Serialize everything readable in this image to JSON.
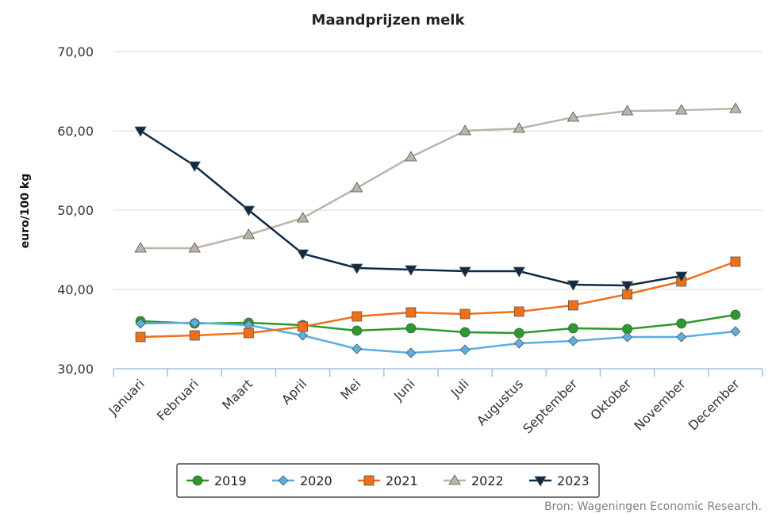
{
  "chart_data": {
    "type": "line",
    "title": "Maandprijzen melk",
    "ylabel": "euro/100 kg",
    "xlabel": "",
    "ylim": [
      30,
      70
    ],
    "yticks": [
      "30,00",
      "40,00",
      "50,00",
      "60,00",
      "70,00"
    ],
    "ytick_values": [
      30,
      40,
      50,
      60,
      70
    ],
    "grid": true,
    "legend_position": "bottom",
    "categories": [
      "Januari",
      "Februari",
      "Maart",
      "April",
      "Mei",
      "Juni",
      "Juli",
      "Augustus",
      "September",
      "Oktober",
      "November",
      "December"
    ],
    "series": [
      {
        "name": "2019",
        "color": "#2a9a2a",
        "marker": "circle",
        "values": [
          36.0,
          35.7,
          35.8,
          35.5,
          34.8,
          35.1,
          34.6,
          34.5,
          35.1,
          35.0,
          35.7,
          36.8
        ]
      },
      {
        "name": "2020",
        "color": "#5aaee0",
        "marker": "diamond",
        "values": [
          35.7,
          35.8,
          35.5,
          34.2,
          32.5,
          32.0,
          32.4,
          33.2,
          33.5,
          34.0,
          34.0,
          34.7
        ]
      },
      {
        "name": "2021",
        "color": "#f07018",
        "marker": "square",
        "values": [
          34.0,
          34.2,
          34.5,
          35.3,
          36.6,
          37.1,
          36.9,
          37.2,
          38.0,
          39.4,
          41.0,
          43.5
        ]
      },
      {
        "name": "2022",
        "color": "#bcb4a8",
        "marker": "triangle",
        "values": [
          45.2,
          45.2,
          46.9,
          49.0,
          52.8,
          56.7,
          60.0,
          60.3,
          61.7,
          62.5,
          62.6,
          62.8
        ]
      },
      {
        "name": "2023",
        "color": "#0f2a45",
        "marker": "triangle-down",
        "values": [
          60.0,
          55.6,
          50.0,
          44.5,
          42.7,
          42.5,
          42.3,
          42.3,
          40.6,
          40.5,
          41.7,
          null
        ]
      }
    ]
  },
  "source": "Bron: Wageningen Economic Research."
}
